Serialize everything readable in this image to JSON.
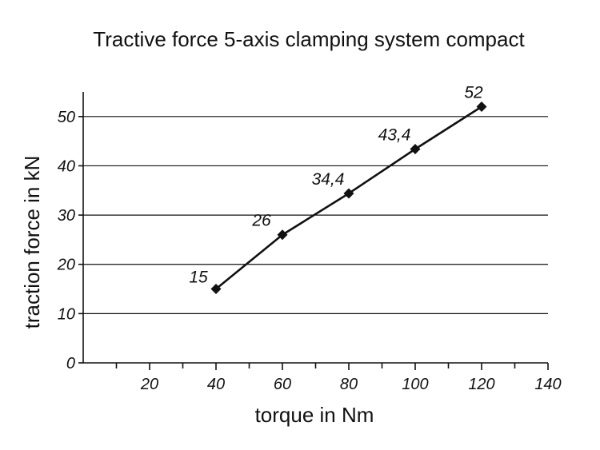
{
  "chart_data": {
    "type": "line",
    "title": "Tractive force 5-axis clamping system compact",
    "xlabel": "torque in Nm",
    "ylabel": "traction force in kN",
    "xlim": [
      0,
      140
    ],
    "ylim": [
      0,
      55
    ],
    "x_ticks": [
      20,
      40,
      60,
      80,
      100,
      120,
      140
    ],
    "y_ticks": [
      0,
      10,
      20,
      30,
      40,
      50
    ],
    "grid": "horizontal",
    "series": [
      {
        "x": [
          40,
          60,
          80,
          100,
          120
        ],
        "values": [
          15,
          26,
          34.4,
          43.4,
          52
        ],
        "labels": [
          "15",
          "26",
          "34,4",
          "43,4",
          "52"
        ]
      }
    ]
  },
  "colors": {
    "line": "#111111",
    "background": "#ffffff"
  }
}
